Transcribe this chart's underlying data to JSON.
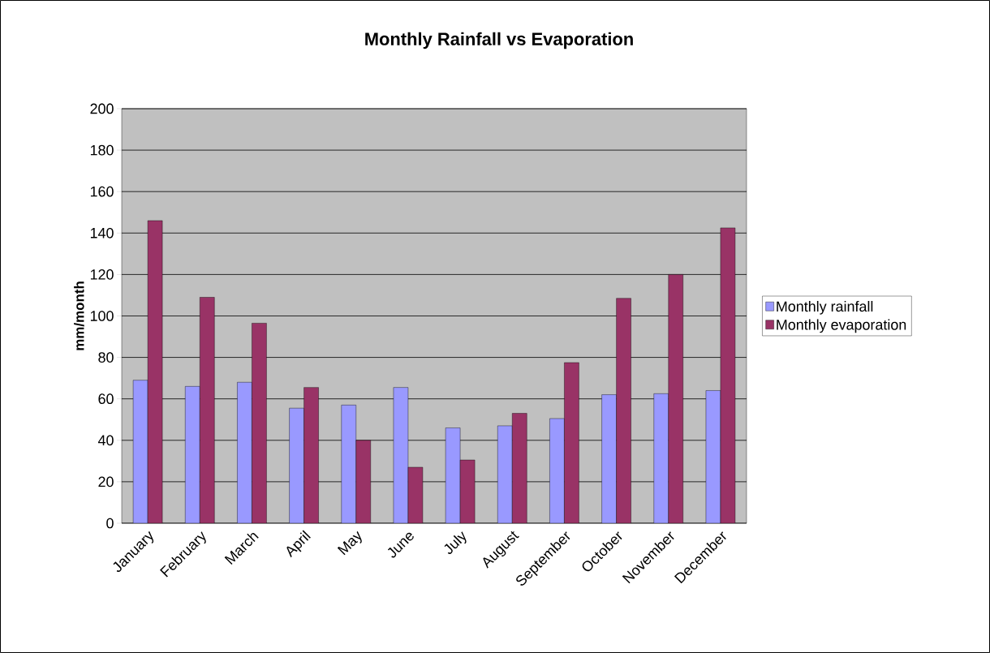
{
  "chart_data": {
    "type": "bar",
    "title": "Monthly Rainfall vs Evaporation",
    "ylabel": "mm/month",
    "categories": [
      "January",
      "February",
      "March",
      "April",
      "May",
      "June",
      "July",
      "August",
      "September",
      "October",
      "November",
      "December"
    ],
    "series": [
      {
        "name": "Monthly rainfall",
        "color": "#9999ff",
        "values": [
          69,
          66,
          68,
          55.5,
          57,
          65.5,
          46,
          47,
          50.5,
          62,
          62.5,
          64
        ]
      },
      {
        "name": "Monthly evaporation",
        "color": "#993366",
        "values": [
          146,
          109,
          96.5,
          65.5,
          40,
          27,
          30.5,
          53,
          77.5,
          108.5,
          120,
          142.5
        ]
      }
    ],
    "ylim": [
      0,
      200
    ],
    "yticks": [
      0,
      20,
      40,
      60,
      80,
      100,
      120,
      140,
      160,
      180,
      200
    ],
    "grid": "y",
    "legend": "right"
  }
}
